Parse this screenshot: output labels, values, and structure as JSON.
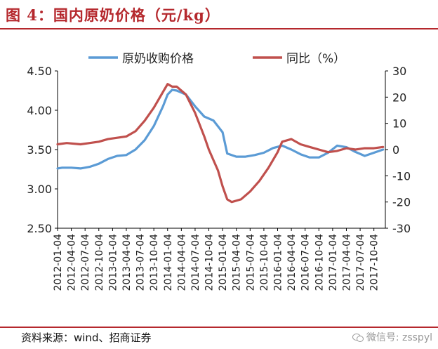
{
  "figure": {
    "title": "图 4：国内原奶价格（元/kg）",
    "source": "资料来源：wind、招商证券",
    "watermark": "微信号: zsspyl"
  },
  "chart_data": {
    "type": "line",
    "legend": [
      "原奶收购价格",
      "同比（%）"
    ],
    "legend_position": "top",
    "grid": false,
    "x_ticks": [
      "2012-01-04",
      "2012-04-04",
      "2012-07-04",
      "2012-10-04",
      "2013-01-04",
      "2013-04-04",
      "2013-07-04",
      "2013-10-04",
      "2014-01-04",
      "2014-04-04",
      "2014-07-04",
      "2014-10-04",
      "2015-01-04",
      "2015-04-04",
      "2015-07-04",
      "2015-10-04",
      "2016-01-04",
      "2016-04-04",
      "2016-07-04",
      "2016-10-04",
      "2017-01-04",
      "2017-04-04",
      "2017-07-04",
      "2017-10-04"
    ],
    "left_axis": {
      "ylim": [
        2.5,
        4.5
      ],
      "ticks": [
        "2.50",
        "3.00",
        "3.50",
        "4.00",
        "4.50"
      ]
    },
    "right_axis": {
      "ylim": [
        -30,
        30
      ],
      "ticks": [
        "-30",
        "-20",
        "-10",
        "0",
        "10",
        "20",
        "30"
      ]
    },
    "series": [
      {
        "name": "原奶收购价格",
        "axis": "left",
        "color": "#5b9bd5",
        "x": [
          "2012-01",
          "2012-02",
          "2012-04",
          "2012-06",
          "2012-08",
          "2012-10",
          "2012-12",
          "2013-02",
          "2013-04",
          "2013-06",
          "2013-08",
          "2013-10",
          "2013-12",
          "2014-01",
          "2014-02",
          "2014-03",
          "2014-05",
          "2014-07",
          "2014-09",
          "2014-11",
          "2015-01",
          "2015-02",
          "2015-04",
          "2015-06",
          "2015-08",
          "2015-10",
          "2015-12",
          "2016-02",
          "2016-04",
          "2016-06",
          "2016-08",
          "2016-10",
          "2016-12",
          "2017-02",
          "2017-04",
          "2017-06",
          "2017-08",
          "2017-10",
          "2017-12"
        ],
        "values": [
          3.26,
          3.27,
          3.27,
          3.26,
          3.28,
          3.32,
          3.38,
          3.42,
          3.43,
          3.5,
          3.62,
          3.8,
          4.05,
          4.2,
          4.26,
          4.25,
          4.2,
          4.05,
          3.92,
          3.87,
          3.72,
          3.45,
          3.41,
          3.41,
          3.43,
          3.46,
          3.52,
          3.55,
          3.5,
          3.44,
          3.4,
          3.4,
          3.46,
          3.55,
          3.53,
          3.47,
          3.42,
          3.46,
          3.5
        ]
      },
      {
        "name": "同比（%）",
        "axis": "right",
        "color": "#c0504d",
        "x": [
          "2012-01",
          "2012-03",
          "2012-06",
          "2012-08",
          "2012-10",
          "2012-12",
          "2013-02",
          "2013-04",
          "2013-06",
          "2013-08",
          "2013-10",
          "2013-12",
          "2014-01",
          "2014-02",
          "2014-03",
          "2014-05",
          "2014-07",
          "2014-09",
          "2014-10",
          "2014-12",
          "2015-01",
          "2015-02",
          "2015-03",
          "2015-05",
          "2015-07",
          "2015-09",
          "2015-11",
          "2016-01",
          "2016-02",
          "2016-04",
          "2016-06",
          "2016-08",
          "2016-10",
          "2016-12",
          "2017-02",
          "2017-04",
          "2017-06",
          "2017-08",
          "2017-10",
          "2017-12"
        ],
        "values": [
          2,
          2.5,
          2,
          2.5,
          3,
          4,
          4.5,
          5,
          7,
          11,
          16,
          22,
          25,
          24,
          24,
          21,
          14,
          5,
          0,
          -8,
          -14,
          -19,
          -20,
          -19,
          -16,
          -12,
          -7,
          -1,
          3,
          4,
          2,
          1,
          0,
          -1,
          -0.5,
          0.5,
          0,
          0.5,
          0.5,
          1
        ]
      }
    ]
  }
}
